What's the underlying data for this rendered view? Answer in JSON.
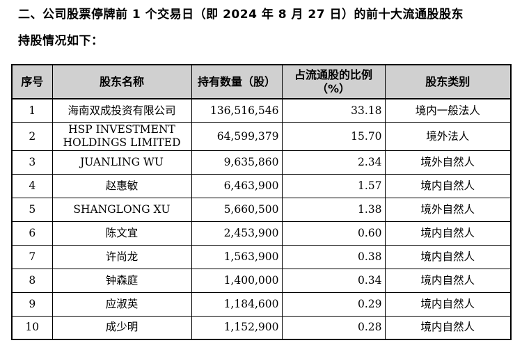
{
  "heading": {
    "line1": "二、公司股票停牌前 1 个交易日（即 2024 年 8 月 27 日）的前十大流通股股东",
    "line2": "持股情况如下："
  },
  "table": {
    "columns": {
      "no": "序号",
      "name": "股东名称",
      "shares": "持有数量（股）",
      "ratio_line1": "占流通股的比例",
      "ratio_line2": "（%）",
      "type": "股东类别"
    },
    "rows": [
      {
        "no": "1",
        "name": "海南双成投资有限公司",
        "shares": "136,516,546",
        "ratio": "33.18",
        "type": "境内一般法人"
      },
      {
        "no": "2",
        "name_line1": "HSP INVESTMENT",
        "name_line2": "HOLDINGS LIMITED",
        "shares": "64,599,379",
        "ratio": "15.70",
        "type": "境外法人"
      },
      {
        "no": "3",
        "name": "JUANLING WU",
        "shares": "9,635,860",
        "ratio": "2.34",
        "type": "境外自然人"
      },
      {
        "no": "4",
        "name": "赵惠敏",
        "shares": "6,463,900",
        "ratio": "1.57",
        "type": "境内自然人"
      },
      {
        "no": "5",
        "name": "SHANGLONG XU",
        "shares": "5,660,500",
        "ratio": "1.38",
        "type": "境外自然人"
      },
      {
        "no": "6",
        "name": "陈文宜",
        "shares": "2,453,900",
        "ratio": "0.60",
        "type": "境内自然人"
      },
      {
        "no": "7",
        "name": "许尚龙",
        "shares": "1,563,900",
        "ratio": "0.38",
        "type": "境内自然人"
      },
      {
        "no": "8",
        "name": "钟森庭",
        "shares": "1,400,000",
        "ratio": "0.34",
        "type": "境内自然人"
      },
      {
        "no": "9",
        "name": "应淑英",
        "shares": "1,184,600",
        "ratio": "0.29",
        "type": "境内自然人"
      },
      {
        "no": "10",
        "name": "成少明",
        "shares": "1,152,900",
        "ratio": "0.28",
        "type": "境内自然人"
      }
    ]
  }
}
